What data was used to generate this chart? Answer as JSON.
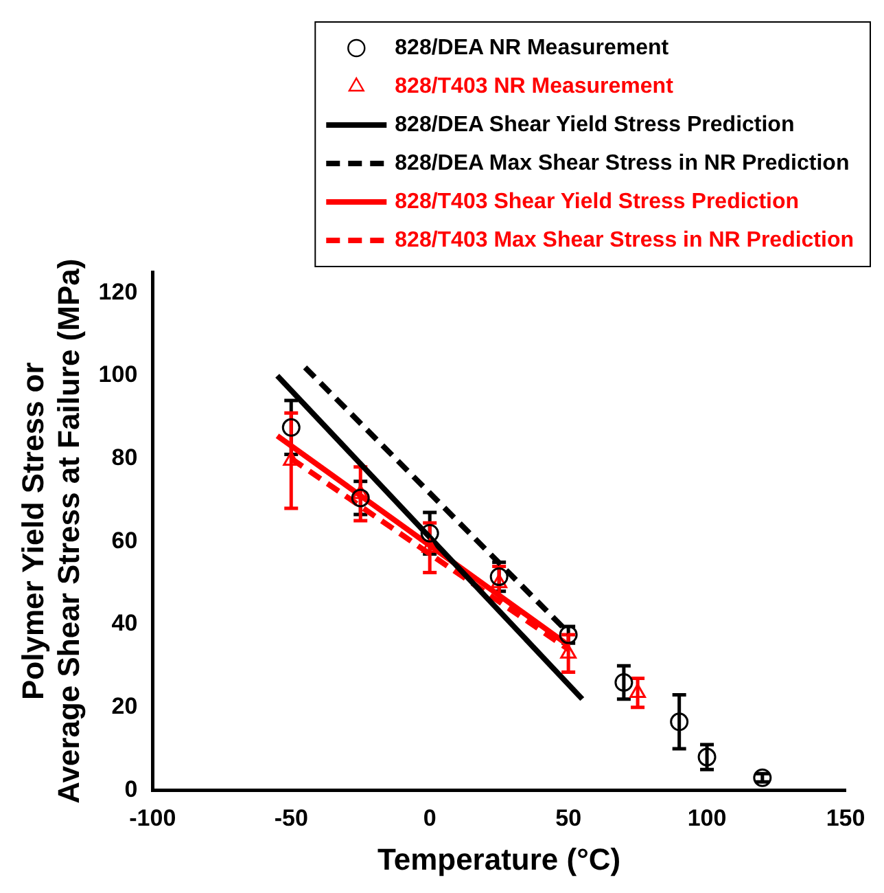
{
  "chart_data": {
    "type": "scatter",
    "xlabel": "Temperature (°C)",
    "ylabel": "Polymer Yield Stress or\nAverage Shear Stress at Failure (MPa)",
    "xlim": [
      -100,
      150
    ],
    "xticks": [
      -100,
      -50,
      0,
      50,
      100,
      150
    ],
    "ylim": [
      0,
      125
    ],
    "yticks": [
      0,
      20,
      40,
      60,
      80,
      100,
      120
    ],
    "grid": false,
    "legend": "top right",
    "series": [
      {
        "name": "828/DEA NR Measurement",
        "color": "#000000",
        "marker": "circle",
        "x": [
          -50,
          -25,
          0,
          25,
          50,
          70,
          90,
          100,
          120
        ],
        "values": [
          87.5,
          70.5,
          62,
          51.5,
          37.5,
          26,
          16.5,
          8,
          3
        ],
        "errors": [
          6.5,
          4,
          5,
          3.5,
          2,
          4,
          6.5,
          3,
          1
        ]
      },
      {
        "name": "828/T403 NR Measurement",
        "color": "#ff0000",
        "marker": "triangle",
        "x": [
          -50,
          -25,
          0,
          25,
          50,
          75
        ],
        "values": [
          79.5,
          71.5,
          58.5,
          50,
          33,
          23.5
        ],
        "errors": [
          [
            68,
            91
          ],
          6.5,
          6,
          4,
          4.5,
          3.5
        ]
      },
      {
        "name": "828/DEA Shear Yield Stress Prediction",
        "type": "line",
        "color": "#000000",
        "line_style": "solid",
        "x": [
          -55,
          55
        ],
        "values": [
          100,
          22
        ]
      },
      {
        "name": "828/DEA Max Shear Stress in NR Prediction",
        "type": "line",
        "color": "#000000",
        "line_style": "dashed",
        "x": [
          -45,
          50
        ],
        "values": [
          102,
          38
        ]
      },
      {
        "name": "828/T403 Shear Yield Stress Prediction",
        "type": "line",
        "color": "#ff0000",
        "line_style": "solid",
        "x": [
          -55,
          50
        ],
        "values": [
          85.5,
          35
        ]
      },
      {
        "name": "828/T403 Max Shear Stress in NR Prediction",
        "type": "line",
        "color": "#ff0000",
        "line_style": "dashed",
        "x": [
          -50,
          50
        ],
        "values": [
          80,
          34
        ]
      }
    ]
  }
}
